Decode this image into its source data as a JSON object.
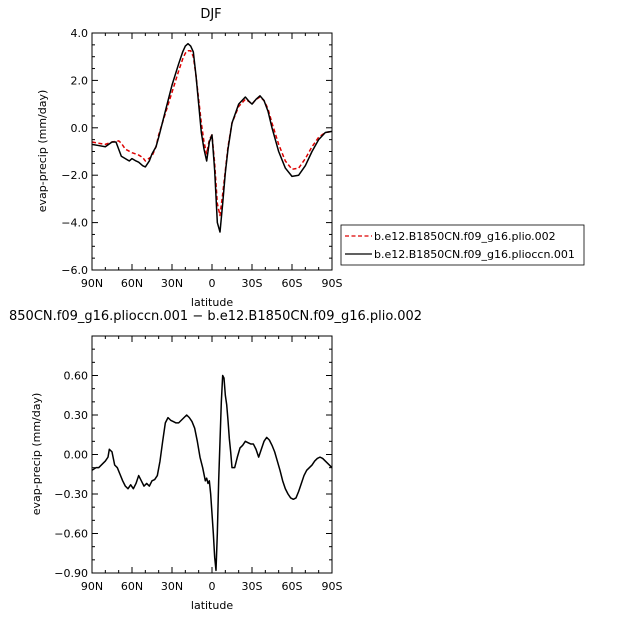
{
  "chart_data": [
    {
      "type": "line",
      "title": "DJF",
      "xlabel": "latitude",
      "ylabel": "evap-precip (mm/day)",
      "xlim": [
        90,
        -90
      ],
      "ylim": [
        -6.0,
        4.0
      ],
      "xticks": [
        90,
        60,
        30,
        0,
        -30,
        -60,
        -90
      ],
      "xticklabels": [
        "90N",
        "60N",
        "30N",
        "0",
        "30S",
        "60S",
        "90S"
      ],
      "yticks": [
        -6.0,
        -4.0,
        -2.0,
        0.0,
        2.0,
        4.0
      ],
      "yticklabels": [
        "−6.0",
        "−4.0",
        "−2.0",
        "0.0",
        "2.0",
        "4.0"
      ],
      "legend_position": "right",
      "series": [
        {
          "name": "b.e12.B1850CN.f09_g16.plio.002",
          "color": "#dd0000",
          "style": "dashed",
          "x": [
            90,
            85,
            80,
            75,
            70,
            68,
            65,
            60,
            55,
            52,
            50,
            45,
            42,
            40,
            35,
            30,
            25,
            22,
            20,
            18,
            16,
            14,
            12,
            10,
            8,
            6,
            4,
            2,
            0,
            -2,
            -4,
            -6,
            -8,
            -10,
            -12,
            -15,
            -20,
            -25,
            -28,
            -30,
            -33,
            -36,
            -39,
            -42,
            -45,
            -50,
            -55,
            -60,
            -65,
            -70,
            -75,
            -80,
            -85,
            -90
          ],
          "y": [
            -0.6,
            -0.65,
            -0.7,
            -0.6,
            -0.55,
            -0.65,
            -0.9,
            -1.05,
            -1.15,
            -1.25,
            -1.4,
            -1.2,
            -0.8,
            -0.3,
            0.6,
            1.5,
            2.4,
            2.9,
            3.15,
            3.25,
            3.25,
            3.0,
            2.2,
            1.2,
            0.2,
            -0.6,
            -1.1,
            -0.5,
            -0.3,
            -1.5,
            -3.2,
            -3.7,
            -2.8,
            -1.8,
            -0.8,
            0.2,
            0.9,
            1.2,
            1.1,
            1.0,
            1.2,
            1.3,
            1.15,
            0.8,
            0.2,
            -0.7,
            -1.4,
            -1.75,
            -1.7,
            -1.3,
            -0.8,
            -0.4,
            -0.2,
            -0.15
          ]
        },
        {
          "name": "b.e12.B1850CN.f09_g16.plioccn.001",
          "color": "#000000",
          "style": "solid",
          "x": [
            90,
            85,
            80,
            75,
            72,
            70,
            68,
            65,
            62,
            60,
            57,
            55,
            52,
            50,
            47,
            45,
            42,
            40,
            35,
            30,
            25,
            22,
            20,
            18,
            16,
            14,
            12,
            10,
            8,
            6,
            4,
            2,
            0,
            -2,
            -4,
            -6,
            -8,
            -10,
            -12,
            -15,
            -20,
            -25,
            -28,
            -30,
            -33,
            -36,
            -39,
            -42,
            -45,
            -50,
            -55,
            -60,
            -65,
            -70,
            -75,
            -80,
            -85,
            -90
          ],
          "y": [
            -0.7,
            -0.75,
            -0.8,
            -0.6,
            -0.6,
            -0.9,
            -1.2,
            -1.3,
            -1.4,
            -1.3,
            -1.4,
            -1.45,
            -1.6,
            -1.65,
            -1.4,
            -1.1,
            -0.8,
            -0.4,
            0.7,
            1.8,
            2.7,
            3.2,
            3.45,
            3.55,
            3.45,
            3.2,
            2.2,
            1.0,
            -0.2,
            -0.9,
            -1.4,
            -0.6,
            -0.3,
            -1.8,
            -4.0,
            -4.4,
            -3.2,
            -1.9,
            -0.9,
            0.2,
            1.0,
            1.3,
            1.1,
            1.0,
            1.2,
            1.35,
            1.15,
            0.7,
            0.0,
            -1.0,
            -1.7,
            -2.05,
            -2.0,
            -1.6,
            -1.0,
            -0.5,
            -0.2,
            -0.15
          ]
        }
      ]
    },
    {
      "type": "line",
      "title": "850CN.f09_g16.plioccn.001 − b.e12.B1850CN.f09_g16.plio.002",
      "xlabel": "latitude",
      "ylabel": "evap-precip (mm/day)",
      "xlim": [
        90,
        -90
      ],
      "ylim": [
        -0.9,
        0.9
      ],
      "xticks": [
        90,
        60,
        30,
        0,
        -30,
        -60,
        -90
      ],
      "xticklabels": [
        "90N",
        "60N",
        "30N",
        "0",
        "30S",
        "60S",
        "90S"
      ],
      "yticks": [
        -0.9,
        -0.6,
        -0.3,
        0.0,
        0.3,
        0.6
      ],
      "yticklabels": [
        "−0.90",
        "−0.60",
        "−0.30",
        "0.00",
        "0.30",
        "0.60"
      ],
      "series": [
        {
          "color": "#000000",
          "style": "solid",
          "x": [
            90,
            87,
            85,
            82,
            80,
            78,
            77,
            75,
            73,
            71,
            69,
            67,
            65,
            63,
            61,
            59,
            57,
            55,
            53,
            51,
            49,
            47,
            45,
            43,
            41,
            39,
            37,
            35,
            33,
            31,
            29,
            27,
            25,
            23,
            21,
            19,
            17,
            15,
            13,
            11,
            9,
            7,
            5,
            4,
            3,
            2,
            1,
            0,
            -1,
            -2,
            -3,
            -4,
            -5,
            -6,
            -7,
            -8,
            -9,
            -10,
            -11,
            -12,
            -13,
            -14,
            -15,
            -17,
            -19,
            -21,
            -23,
            -25,
            -27,
            -29,
            -31,
            -33,
            -35,
            -37,
            -39,
            -41,
            -43,
            -45,
            -47,
            -49,
            -51,
            -53,
            -55,
            -57,
            -59,
            -61,
            -63,
            -65,
            -67,
            -69,
            -71,
            -73,
            -75,
            -77,
            -79,
            -81,
            -83,
            -85,
            -87,
            -90
          ],
          "y": [
            -0.12,
            -0.1,
            -0.1,
            -0.07,
            -0.05,
            -0.02,
            0.04,
            0.02,
            -0.08,
            -0.1,
            -0.15,
            -0.2,
            -0.24,
            -0.26,
            -0.23,
            -0.26,
            -0.22,
            -0.16,
            -0.2,
            -0.24,
            -0.22,
            -0.24,
            -0.2,
            -0.19,
            -0.16,
            -0.05,
            0.1,
            0.24,
            0.28,
            0.26,
            0.25,
            0.24,
            0.24,
            0.26,
            0.28,
            0.3,
            0.28,
            0.25,
            0.2,
            0.1,
            -0.02,
            -0.1,
            -0.2,
            -0.18,
            -0.22,
            -0.2,
            -0.3,
            -0.45,
            -0.6,
            -0.78,
            -0.88,
            -0.6,
            -0.2,
            0.1,
            0.4,
            0.6,
            0.58,
            0.45,
            0.38,
            0.26,
            0.12,
            0.02,
            -0.1,
            -0.1,
            -0.02,
            0.05,
            0.07,
            0.1,
            0.09,
            0.08,
            0.08,
            0.04,
            -0.02,
            0.04,
            0.1,
            0.13,
            0.11,
            0.07,
            0.02,
            -0.05,
            -0.12,
            -0.2,
            -0.26,
            -0.3,
            -0.33,
            -0.34,
            -0.33,
            -0.28,
            -0.22,
            -0.16,
            -0.12,
            -0.1,
            -0.08,
            -0.05,
            -0.03,
            -0.02,
            -0.03,
            -0.05,
            -0.07,
            -0.1
          ]
        }
      ]
    }
  ]
}
